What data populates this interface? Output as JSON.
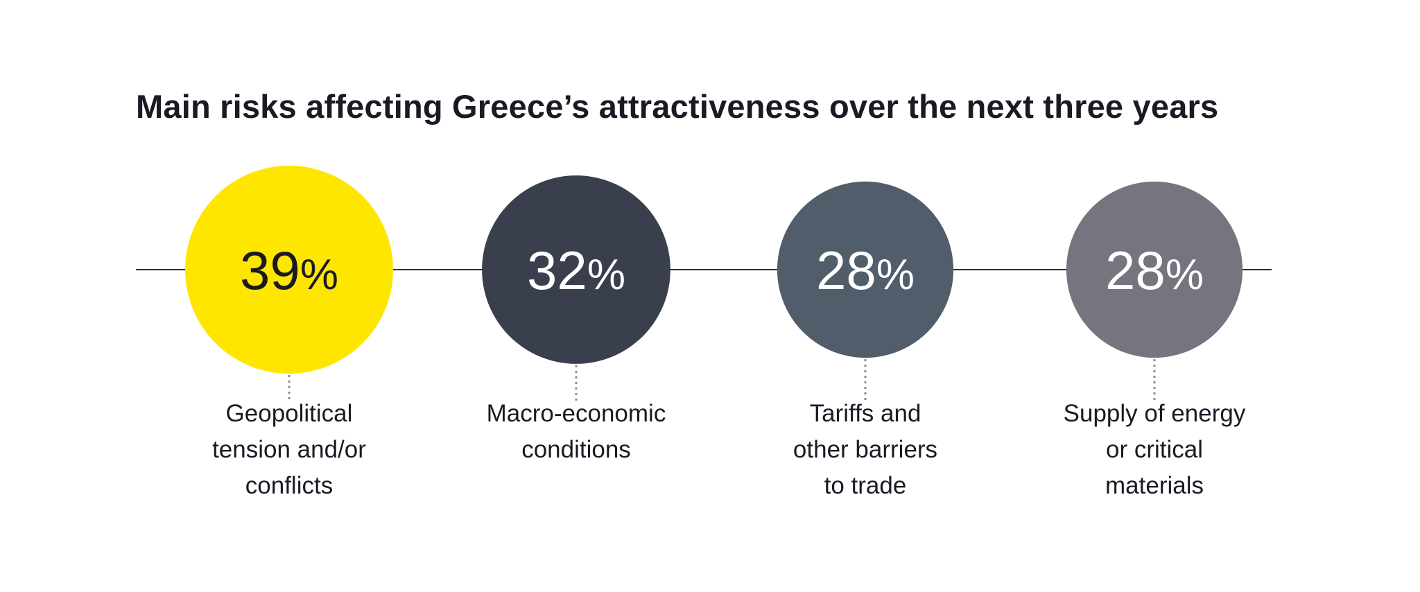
{
  "title": "Main risks affecting Greece’s attractiveness over the next three years",
  "chart_data": {
    "type": "bubble",
    "title": "Main risks affecting Greece’s attractiveness over the next three years",
    "unit": "%",
    "items": [
      {
        "value": 39,
        "label_lines": [
          "Geopolitical",
          "tension and/or",
          "conflicts"
        ],
        "color": "#ffe600",
        "text_color": "#1a1a24"
      },
      {
        "value": 32,
        "label_lines": [
          "Macro-economic",
          "conditions"
        ],
        "color": "#3a3f4e",
        "text_color": "#ffffff"
      },
      {
        "value": 28,
        "label_lines": [
          "Tariffs and",
          "other barriers",
          "to trade"
        ],
        "color": "#525d6b",
        "text_color": "#ffffff"
      },
      {
        "value": 28,
        "label_lines": [
          "Supply of energy",
          "or critical",
          "materials"
        ],
        "color": "#75747f",
        "text_color": "#ffffff"
      }
    ]
  },
  "colors": {
    "line": "#2e2e38",
    "connector": "#8a8a8f",
    "label": "#1a1a24"
  }
}
